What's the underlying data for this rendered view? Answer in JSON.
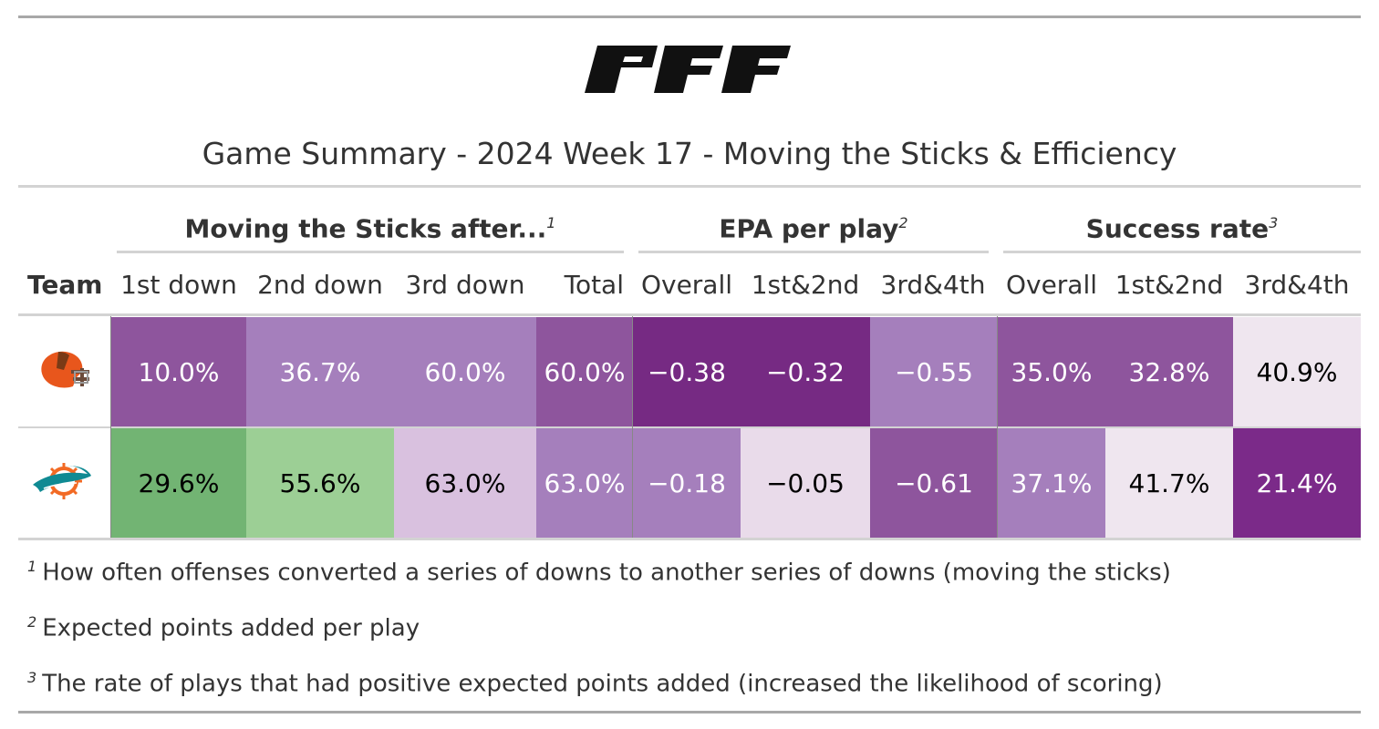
{
  "logo_text": "PFF",
  "title": "Game Summary - 2024 Week 17 - Moving the Sticks & Efficiency",
  "spanners": {
    "moving": {
      "label": "Moving the Sticks after...",
      "note": "1"
    },
    "epa": {
      "label": "EPA per play",
      "note": "2"
    },
    "success": {
      "label": "Success rate",
      "note": "3"
    }
  },
  "columns": [
    "Team",
    "1st down",
    "2nd down",
    "3rd down",
    "Total",
    "Overall",
    "1st&2nd",
    "3rd&4th",
    "Overall",
    "1st&2nd",
    "3rd&4th"
  ],
  "rows": [
    {
      "team_icon": "cleveland-browns-helmet-icon",
      "cells": [
        {
          "text": "10.0%",
          "bg": "#8e559d",
          "fg": "#ffffff"
        },
        {
          "text": "36.7%",
          "bg": "#a57fbc",
          "fg": "#ffffff"
        },
        {
          "text": "60.0%",
          "bg": "#a57fbc",
          "fg": "#ffffff"
        },
        {
          "text": "60.0%",
          "bg": "#8e559d",
          "fg": "#ffffff"
        },
        {
          "text": "−0.38",
          "bg": "#762a83",
          "fg": "#ffffff"
        },
        {
          "text": "−0.32",
          "bg": "#762a83",
          "fg": "#ffffff"
        },
        {
          "text": "−0.55",
          "bg": "#a57fbc",
          "fg": "#ffffff"
        },
        {
          "text": "35.0%",
          "bg": "#8e559d",
          "fg": "#ffffff"
        },
        {
          "text": "32.8%",
          "bg": "#8e559d",
          "fg": "#ffffff"
        },
        {
          "text": "40.9%",
          "bg": "#efe6ef",
          "fg": "#000000"
        }
      ]
    },
    {
      "team_icon": "miami-dolphins-logo-icon",
      "cells": [
        {
          "text": "29.6%",
          "bg": "#72b473",
          "fg": "#000000"
        },
        {
          "text": "55.6%",
          "bg": "#9ccf95",
          "fg": "#000000"
        },
        {
          "text": "63.0%",
          "bg": "#d9c1df",
          "fg": "#000000"
        },
        {
          "text": "63.0%",
          "bg": "#a57fbc",
          "fg": "#ffffff"
        },
        {
          "text": "−0.18",
          "bg": "#a57fbc",
          "fg": "#ffffff"
        },
        {
          "text": "−0.05",
          "bg": "#e9dbea",
          "fg": "#000000"
        },
        {
          "text": "−0.61",
          "bg": "#8e559d",
          "fg": "#ffffff"
        },
        {
          "text": "37.1%",
          "bg": "#a57fbc",
          "fg": "#ffffff"
        },
        {
          "text": "41.7%",
          "bg": "#efe6ef",
          "fg": "#000000"
        },
        {
          "text": "21.4%",
          "bg": "#7b2a89",
          "fg": "#ffffff"
        }
      ]
    }
  ],
  "footnotes": [
    {
      "mark": "1",
      "text": "How often offenses converted a series of downs to another series of downs (moving the sticks)"
    },
    {
      "mark": "2",
      "text": "Expected points added per play"
    },
    {
      "mark": "3",
      "text": "The rate of plays that had positive expected points added (increased the likelihood of scoring)"
    }
  ]
}
